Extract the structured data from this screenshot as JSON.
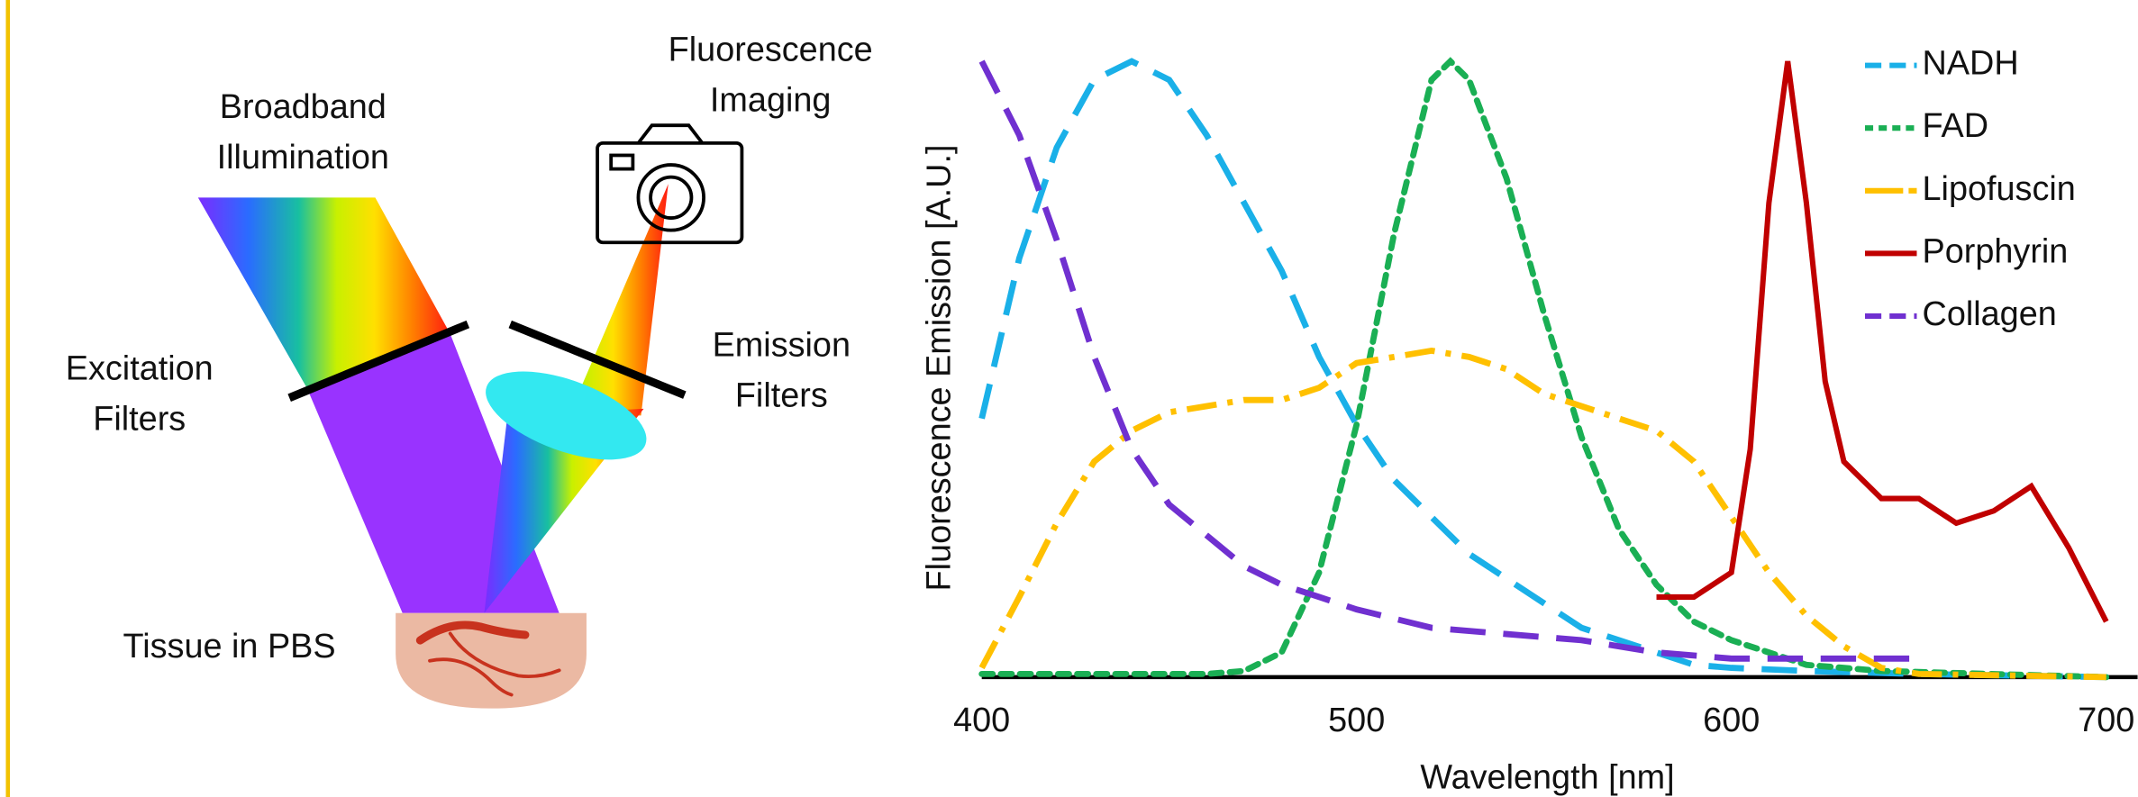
{
  "diagram": {
    "labels": [
      {
        "lines": [
          "Broadband",
          "Illumination"
        ]
      },
      {
        "lines": [
          "Fluorescence",
          "Imaging"
        ]
      },
      {
        "lines": [
          "Excitation",
          "Filters"
        ]
      },
      {
        "lines": [
          "Emission",
          "Filters"
        ]
      },
      {
        "lines": [
          "Tissue in PBS"
        ]
      }
    ]
  },
  "chart_data": {
    "type": "line",
    "xlabel": "Wavelength [nm]",
    "ylabel": "Fluorescence Emission [A.U.]",
    "xlim": [
      400,
      700
    ],
    "xticks": [
      400,
      500,
      600,
      700
    ],
    "ylim": [
      0,
      1
    ],
    "legend": "upper right",
    "series": [
      {
        "name": "NADH",
        "color": "#1ab0e8",
        "linestyle": "dashed",
        "x": [
          400,
          410,
          420,
          430,
          440,
          450,
          460,
          470,
          480,
          490,
          500,
          510,
          520,
          530,
          540,
          550,
          560,
          570,
          580,
          590,
          600,
          620,
          650,
          700
        ],
        "values": [
          0.42,
          0.68,
          0.86,
          0.97,
          1.0,
          0.97,
          0.88,
          0.77,
          0.66,
          0.52,
          0.41,
          0.32,
          0.26,
          0.2,
          0.16,
          0.12,
          0.08,
          0.06,
          0.04,
          0.02,
          0.015,
          0.01,
          0.005,
          0
        ]
      },
      {
        "name": "FAD",
        "color": "#1aaf54",
        "linestyle": "dotted",
        "x": [
          400,
          420,
          440,
          460,
          470,
          480,
          490,
          500,
          510,
          520,
          525,
          530,
          540,
          550,
          560,
          570,
          580,
          590,
          600,
          610,
          620,
          640,
          700
        ],
        "values": [
          0.005,
          0.005,
          0.005,
          0.005,
          0.01,
          0.04,
          0.17,
          0.41,
          0.72,
          0.97,
          1.0,
          0.97,
          0.81,
          0.59,
          0.39,
          0.24,
          0.15,
          0.09,
          0.06,
          0.04,
          0.02,
          0.01,
          0
        ]
      },
      {
        "name": "Lipofuscin",
        "color": "#ffc000",
        "linestyle": "dashdot",
        "x": [
          400,
          410,
          420,
          430,
          440,
          450,
          460,
          470,
          480,
          490,
          500,
          510,
          520,
          530,
          540,
          550,
          560,
          570,
          580,
          590,
          600,
          610,
          620,
          630,
          640,
          650,
          700
        ],
        "values": [
          0.015,
          0.13,
          0.25,
          0.35,
          0.4,
          0.43,
          0.44,
          0.45,
          0.45,
          0.47,
          0.51,
          0.52,
          0.53,
          0.52,
          0.5,
          0.46,
          0.44,
          0.42,
          0.4,
          0.35,
          0.26,
          0.17,
          0.1,
          0.05,
          0.015,
          0.005,
          0
        ]
      },
      {
        "name": "Porphyrin",
        "color": "#c00000",
        "linestyle": "solid",
        "x": [
          580,
          590,
          600,
          605,
          610,
          615,
          620,
          625,
          630,
          640,
          650,
          660,
          670,
          680,
          690,
          700
        ],
        "values": [
          0.13,
          0.13,
          0.17,
          0.37,
          0.77,
          1.0,
          0.77,
          0.48,
          0.35,
          0.29,
          0.29,
          0.25,
          0.27,
          0.31,
          0.21,
          0.09
        ]
      },
      {
        "name": "Collagen",
        "color": "#7030d0",
        "linestyle": "dashed",
        "x": [
          400,
          410,
          420,
          430,
          440,
          450,
          460,
          470,
          480,
          490,
          500,
          520,
          540,
          560,
          580,
          600,
          620,
          640,
          650
        ],
        "values": [
          1.0,
          0.88,
          0.71,
          0.52,
          0.37,
          0.28,
          0.23,
          0.18,
          0.15,
          0.13,
          0.11,
          0.08,
          0.07,
          0.06,
          0.04,
          0.03,
          0.03,
          0.03,
          0.03
        ]
      }
    ]
  }
}
